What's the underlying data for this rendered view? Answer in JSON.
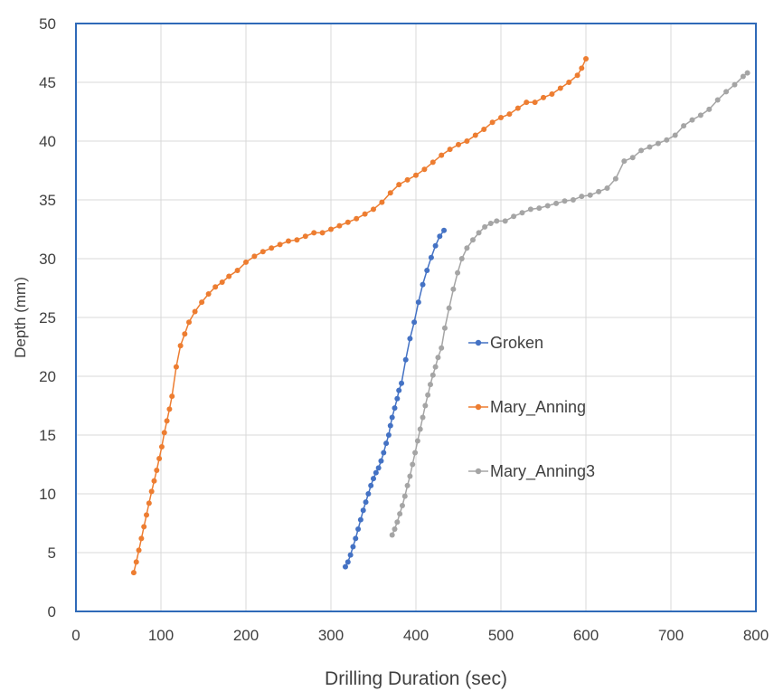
{
  "chart_data": {
    "type": "scatter",
    "title": "",
    "xlabel": "Drilling Duration (sec)",
    "ylabel": "Depth (mm)",
    "xlim": [
      0,
      800
    ],
    "ylim": [
      0,
      50
    ],
    "xticks": [
      "0",
      "100",
      "200",
      "300",
      "400",
      "500",
      "600",
      "700",
      "800"
    ],
    "yticks": [
      "0",
      "5",
      "10",
      "15",
      "20",
      "25",
      "30",
      "35",
      "40",
      "45",
      "50"
    ],
    "grid": true,
    "legend_position": "right",
    "series": [
      {
        "name": "Groken",
        "color": "#4472C4",
        "points": [
          [
            317,
            3.8
          ],
          [
            320,
            4.2
          ],
          [
            323,
            4.8
          ],
          [
            326,
            5.5
          ],
          [
            329,
            6.2
          ],
          [
            332,
            7.0
          ],
          [
            335,
            7.8
          ],
          [
            338,
            8.6
          ],
          [
            341,
            9.3
          ],
          [
            344,
            10.0
          ],
          [
            347,
            10.7
          ],
          [
            350,
            11.3
          ],
          [
            353,
            11.8
          ],
          [
            356,
            12.2
          ],
          [
            359,
            12.8
          ],
          [
            362,
            13.5
          ],
          [
            365,
            14.3
          ],
          [
            368,
            15.0
          ],
          [
            370,
            15.8
          ],
          [
            372,
            16.5
          ],
          [
            375,
            17.3
          ],
          [
            378,
            18.1
          ],
          [
            380,
            18.8
          ],
          [
            383,
            19.4
          ],
          [
            388,
            21.4
          ],
          [
            393,
            23.2
          ],
          [
            398,
            24.6
          ],
          [
            403,
            26.3
          ],
          [
            408,
            27.8
          ],
          [
            413,
            29.0
          ],
          [
            418,
            30.1
          ],
          [
            423,
            31.1
          ],
          [
            428,
            31.9
          ],
          [
            433,
            32.4
          ]
        ]
      },
      {
        "name": "Mary_Anning",
        "color": "#ED7D31",
        "points": [
          [
            68,
            3.3
          ],
          [
            71,
            4.2
          ],
          [
            74,
            5.2
          ],
          [
            77,
            6.2
          ],
          [
            80,
            7.2
          ],
          [
            83,
            8.2
          ],
          [
            86,
            9.2
          ],
          [
            89,
            10.2
          ],
          [
            92,
            11.1
          ],
          [
            95,
            12.0
          ],
          [
            98,
            13.0
          ],
          [
            101,
            14.0
          ],
          [
            104,
            15.2
          ],
          [
            107,
            16.2
          ],
          [
            110,
            17.2
          ],
          [
            113,
            18.3
          ],
          [
            118,
            20.8
          ],
          [
            123,
            22.6
          ],
          [
            128,
            23.6
          ],
          [
            133,
            24.6
          ],
          [
            140,
            25.5
          ],
          [
            148,
            26.3
          ],
          [
            156,
            27.0
          ],
          [
            164,
            27.6
          ],
          [
            172,
            28.0
          ],
          [
            180,
            28.5
          ],
          [
            190,
            29.0
          ],
          [
            200,
            29.7
          ],
          [
            210,
            30.2
          ],
          [
            220,
            30.6
          ],
          [
            230,
            30.9
          ],
          [
            240,
            31.2
          ],
          [
            250,
            31.5
          ],
          [
            260,
            31.6
          ],
          [
            270,
            31.9
          ],
          [
            280,
            32.2
          ],
          [
            290,
            32.2
          ],
          [
            300,
            32.5
          ],
          [
            310,
            32.8
          ],
          [
            320,
            33.1
          ],
          [
            330,
            33.4
          ],
          [
            340,
            33.8
          ],
          [
            350,
            34.2
          ],
          [
            360,
            34.8
          ],
          [
            370,
            35.6
          ],
          [
            380,
            36.3
          ],
          [
            390,
            36.7
          ],
          [
            400,
            37.1
          ],
          [
            410,
            37.6
          ],
          [
            420,
            38.2
          ],
          [
            430,
            38.8
          ],
          [
            440,
            39.3
          ],
          [
            450,
            39.7
          ],
          [
            460,
            40.0
          ],
          [
            470,
            40.5
          ],
          [
            480,
            41.0
          ],
          [
            490,
            41.6
          ],
          [
            500,
            42.0
          ],
          [
            510,
            42.3
          ],
          [
            520,
            42.8
          ],
          [
            530,
            43.3
          ],
          [
            540,
            43.3
          ],
          [
            550,
            43.7
          ],
          [
            560,
            44.0
          ],
          [
            570,
            44.5
          ],
          [
            580,
            45.0
          ],
          [
            590,
            45.6
          ],
          [
            595,
            46.2
          ],
          [
            600,
            47.0
          ]
        ]
      },
      {
        "name": "Mary_Anning3",
        "color": "#A5A5A5",
        "points": [
          [
            372,
            6.5
          ],
          [
            375,
            7.0
          ],
          [
            378,
            7.6
          ],
          [
            381,
            8.3
          ],
          [
            384,
            9.0
          ],
          [
            387,
            9.8
          ],
          [
            390,
            10.7
          ],
          [
            393,
            11.5
          ],
          [
            396,
            12.5
          ],
          [
            399,
            13.5
          ],
          [
            402,
            14.5
          ],
          [
            405,
            15.5
          ],
          [
            408,
            16.5
          ],
          [
            411,
            17.5
          ],
          [
            414,
            18.4
          ],
          [
            417,
            19.3
          ],
          [
            420,
            20.1
          ],
          [
            423,
            20.8
          ],
          [
            426,
            21.6
          ],
          [
            430,
            22.4
          ],
          [
            434,
            24.1
          ],
          [
            439,
            25.8
          ],
          [
            444,
            27.4
          ],
          [
            449,
            28.8
          ],
          [
            454,
            30.0
          ],
          [
            460,
            30.9
          ],
          [
            467,
            31.6
          ],
          [
            474,
            32.2
          ],
          [
            481,
            32.7
          ],
          [
            488,
            33.0
          ],
          [
            495,
            33.2
          ],
          [
            505,
            33.2
          ],
          [
            515,
            33.6
          ],
          [
            525,
            33.9
          ],
          [
            535,
            34.2
          ],
          [
            545,
            34.3
          ],
          [
            555,
            34.5
          ],
          [
            565,
            34.7
          ],
          [
            575,
            34.9
          ],
          [
            585,
            35.0
          ],
          [
            595,
            35.3
          ],
          [
            605,
            35.4
          ],
          [
            615,
            35.7
          ],
          [
            625,
            36.0
          ],
          [
            635,
            36.8
          ],
          [
            645,
            38.3
          ],
          [
            655,
            38.6
          ],
          [
            665,
            39.2
          ],
          [
            675,
            39.5
          ],
          [
            685,
            39.8
          ],
          [
            695,
            40.1
          ],
          [
            705,
            40.5
          ],
          [
            715,
            41.3
          ],
          [
            725,
            41.8
          ],
          [
            735,
            42.2
          ],
          [
            745,
            42.7
          ],
          [
            755,
            43.5
          ],
          [
            765,
            44.2
          ],
          [
            775,
            44.8
          ],
          [
            785,
            45.5
          ],
          [
            790,
            45.8
          ]
        ]
      }
    ]
  }
}
